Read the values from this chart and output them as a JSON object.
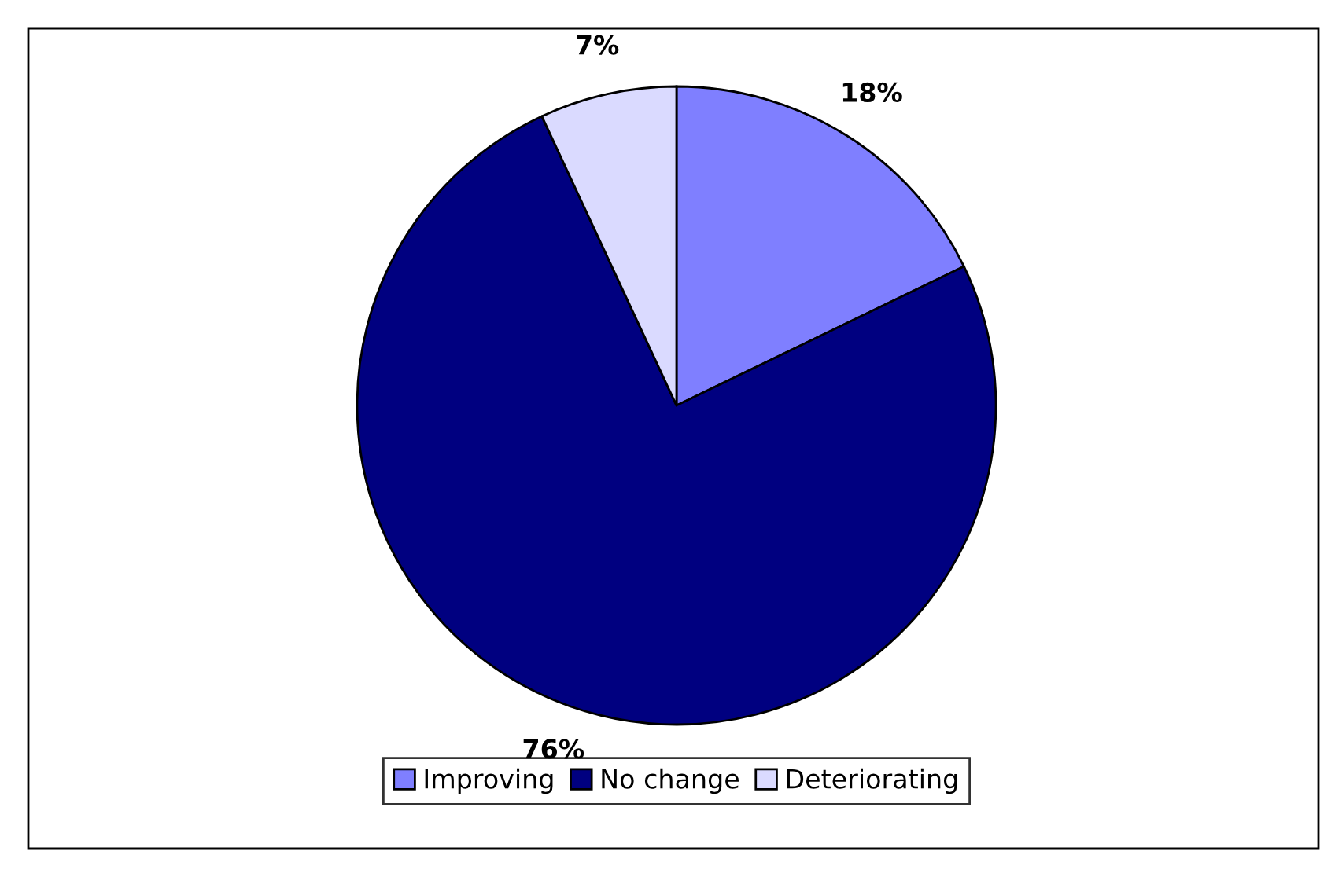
{
  "chart_data": {
    "type": "pie",
    "categories": [
      "Improving",
      "No change",
      "Deteriorating"
    ],
    "values": [
      18,
      76,
      7
    ],
    "colors": [
      "#7f7fff",
      "#000080",
      "#dadaff"
    ],
    "value_labels": [
      "18%",
      "76%",
      "7%"
    ],
    "legend": "bottom"
  }
}
